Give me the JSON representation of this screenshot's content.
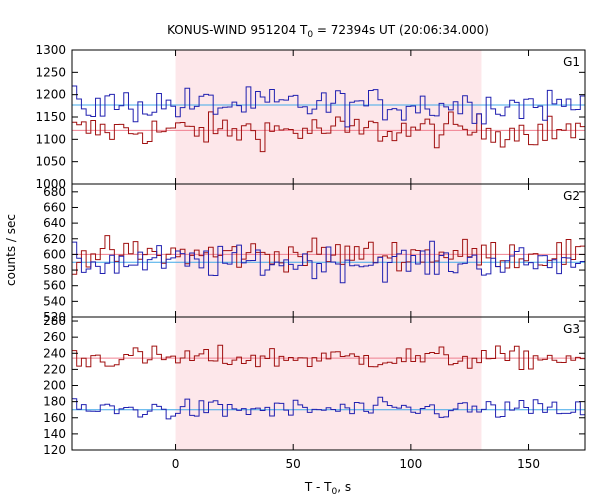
{
  "chart_data": {
    "type": "line",
    "title": {
      "prefix": "KONUS-WIND 951204 T",
      "sub": "0",
      "suffix": " = 72394s UT (20:06:34.000)"
    },
    "xlabel": {
      "prefix": "T - T",
      "sub": "0",
      "suffix": ", s"
    },
    "ylabel": "counts / sec",
    "xlim": [
      -44,
      174
    ],
    "x_ticks": [
      0,
      50,
      100,
      150
    ],
    "x_tick_labels": [
      "0",
      "50",
      "100",
      "150"
    ],
    "highlight_interval": {
      "start": 0,
      "end": 130,
      "color": "#fde7ea"
    },
    "bin_width": 2,
    "colors": {
      "red_series": "#a01010",
      "blue_series": "#2020b0",
      "red_bg": "#f08090",
      "blue_bg": "#40a8e8"
    },
    "panels": [
      {
        "name": "G1",
        "ylim": [
          1000,
          1300
        ],
        "y_ticks": [
          1050,
          1100,
          1150,
          1200,
          1250,
          1300
        ],
        "y_tick_labels": [
          "1050",
          "1100",
          "1150",
          "1200",
          "1250",
          "1300"
        ],
        "background": {
          "red": 1120,
          "blue": 1177
        },
        "series": [
          {
            "color": "red",
            "base": 1120,
            "noise": 26
          },
          {
            "color": "blue",
            "base": 1177,
            "noise": 28
          }
        ]
      },
      {
        "name": "G2",
        "ylim": [
          520,
          690
        ],
        "y_ticks": [
          540,
          560,
          580,
          600,
          620,
          640,
          660,
          680
        ],
        "y_tick_labels": [
          "540",
          "560",
          "580",
          "600",
          "620",
          "640",
          "660",
          "680"
        ],
        "background": {
          "red": 600,
          "blue": 590
        },
        "series": [
          {
            "color": "red",
            "base": 600,
            "noise": 14
          },
          {
            "color": "blue",
            "base": 590,
            "noise": 15
          }
        ]
      },
      {
        "name": "G3",
        "ylim": [
          120,
          285
        ],
        "y_ticks": [
          120,
          140,
          160,
          180,
          200,
          220,
          240,
          260,
          280
        ],
        "y_tick_labels": [
          "120",
          "140",
          "160",
          "180",
          "200",
          "220",
          "240",
          "260",
          "280"
        ],
        "background": {
          "red": 234,
          "blue": 170
        },
        "series": [
          {
            "color": "red",
            "base": 234,
            "noise": 10
          },
          {
            "color": "blue",
            "base": 170,
            "noise": 9
          }
        ]
      }
    ],
    "panel_divider_labels": [
      "1000",
      "520"
    ]
  }
}
